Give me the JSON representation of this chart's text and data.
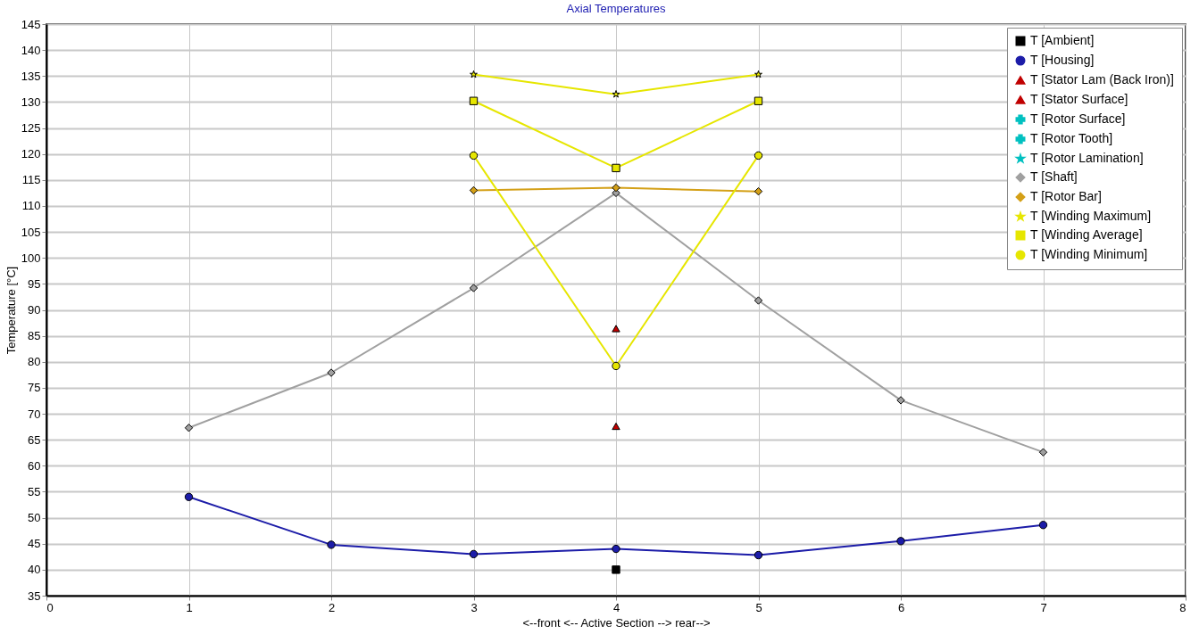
{
  "chart_data": {
    "type": "line",
    "title": "Axial Temperatures",
    "xlabel": "<--front <-- Active Section  --> rear-->",
    "ylabel": "Temperature [°C]",
    "x": [
      1,
      2,
      3,
      4,
      5,
      6,
      7
    ],
    "series": [
      {
        "name": "T [Ambient]",
        "color": "#000000",
        "marker": "square",
        "values": [
          null,
          null,
          null,
          40,
          null,
          null,
          null
        ]
      },
      {
        "name": "T [Housing]",
        "color": "#1c1ca8",
        "marker": "circle",
        "values": [
          54,
          44.8,
          43,
          44,
          42.8,
          45.5,
          48.6
        ]
      },
      {
        "name": "T [Stator Lam (Back Iron)]",
        "color": "#c00000",
        "marker": "triangle",
        "values": [
          null,
          null,
          null,
          67.6,
          null,
          null,
          null
        ]
      },
      {
        "name": "T [Stator Surface]",
        "color": "#c00000",
        "marker": "triangle",
        "values": [
          null,
          null,
          null,
          86.4,
          null,
          null,
          null
        ]
      },
      {
        "name": "T [Rotor Surface]",
        "color": "#00c0c0",
        "marker": "cross",
        "values": [
          null,
          null,
          null,
          null,
          null,
          null,
          null
        ]
      },
      {
        "name": "T [Rotor Tooth]",
        "color": "#00c0c0",
        "marker": "cross",
        "values": [
          null,
          null,
          null,
          null,
          null,
          null,
          null
        ]
      },
      {
        "name": "T [Rotor Lamination]",
        "color": "#00c0c0",
        "marker": "star",
        "values": [
          null,
          null,
          null,
          null,
          null,
          null,
          null
        ]
      },
      {
        "name": "T [Shaft]",
        "color": "#a0a0a0",
        "marker": "diamond",
        "values": [
          67.3,
          77.9,
          94.2,
          112.5,
          91.8,
          72.6,
          62.6
        ]
      },
      {
        "name": "T [Rotor Bar]",
        "color": "#d4a017",
        "marker": "diamond",
        "values": [
          null,
          null,
          113,
          113.5,
          112.8,
          null,
          null
        ]
      },
      {
        "name": "T [Winding Maximum]",
        "color": "#e6e600",
        "marker": "star",
        "values": [
          null,
          null,
          135.3,
          131.5,
          135.3,
          null,
          null
        ]
      },
      {
        "name": "T [Winding Average]",
        "color": "#e6e600",
        "marker": "square",
        "values": [
          null,
          null,
          130.2,
          117.3,
          130.2,
          null,
          null
        ]
      },
      {
        "name": "T [Winding Minimum]",
        "color": "#e6e600",
        "marker": "circle",
        "values": [
          null,
          null,
          119.7,
          79.2,
          119.7,
          null,
          null
        ]
      }
    ],
    "xlim": [
      0,
      8
    ],
    "xticks": [
      0,
      1,
      2,
      3,
      4,
      5,
      6,
      7,
      8
    ],
    "ylim": [
      35,
      145
    ],
    "yticks": [
      35,
      40,
      45,
      50,
      55,
      60,
      65,
      70,
      75,
      80,
      85,
      90,
      95,
      100,
      105,
      110,
      115,
      120,
      125,
      130,
      135,
      140,
      145
    ],
    "grid": true,
    "legend": "top right",
    "line_style": "solid"
  }
}
